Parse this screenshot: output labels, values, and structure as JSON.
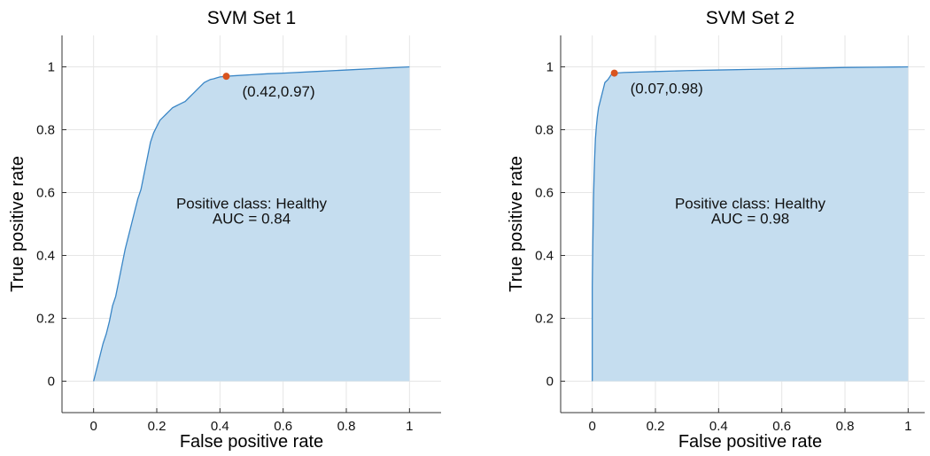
{
  "chart_data": [
    {
      "type": "area",
      "title": "SVM Set 1",
      "xlabel": "False positive rate",
      "ylabel": "True positive rate",
      "xlim": [
        -0.1,
        1.1
      ],
      "ylim": [
        -0.1,
        1.1
      ],
      "xticks": [
        "0",
        "0.2",
        "0.4",
        "0.6",
        "0.8",
        "1"
      ],
      "yticks": [
        "0",
        "0.2",
        "0.4",
        "0.6",
        "0.8",
        "1"
      ],
      "grid": true,
      "annotation_lines": [
        "Positive class: Healthy",
        "AUC = 0.84"
      ],
      "operating_point": {
        "x": 0.42,
        "y": 0.97,
        "label": "(0.42,0.97)"
      },
      "series": [
        {
          "x": [
            0,
            0.01,
            0.02,
            0.03,
            0.04,
            0.05,
            0.06,
            0.07,
            0.08,
            0.09,
            0.1,
            0.11,
            0.12,
            0.13,
            0.14,
            0.15,
            0.16,
            0.17,
            0.18,
            0.19,
            0.2,
            0.21,
            0.22,
            0.23,
            0.24,
            0.25,
            0.26,
            0.27,
            0.28,
            0.29,
            0.3,
            0.31,
            0.32,
            0.33,
            0.34,
            0.35,
            0.36,
            0.37,
            0.38,
            0.39,
            0.4,
            0.42,
            0.45,
            0.5,
            0.55,
            0.6,
            0.7,
            0.8,
            0.9,
            1.0
          ],
          "y": [
            0,
            0.04,
            0.08,
            0.12,
            0.15,
            0.19,
            0.24,
            0.27,
            0.32,
            0.37,
            0.42,
            0.46,
            0.5,
            0.54,
            0.58,
            0.61,
            0.66,
            0.71,
            0.76,
            0.79,
            0.81,
            0.83,
            0.84,
            0.85,
            0.86,
            0.87,
            0.875,
            0.88,
            0.885,
            0.89,
            0.9,
            0.91,
            0.92,
            0.93,
            0.94,
            0.95,
            0.955,
            0.96,
            0.962,
            0.965,
            0.968,
            0.97,
            0.972,
            0.975,
            0.978,
            0.98,
            0.985,
            0.99,
            0.995,
            1.0
          ]
        }
      ]
    },
    {
      "type": "area",
      "title": "SVM Set 2",
      "xlabel": "False positive rate",
      "ylabel": "True positive rate",
      "xlim": [
        -0.1,
        1.1
      ],
      "ylim": [
        -0.1,
        1.1
      ],
      "xticks": [
        "0",
        "0.2",
        "0.4",
        "0.6",
        "0.8",
        "1"
      ],
      "yticks": [
        "0",
        "0.2",
        "0.4",
        "0.6",
        "0.8",
        "1"
      ],
      "grid": true,
      "annotation_lines": [
        "Positive class: Healthy",
        "AUC = 0.98"
      ],
      "operating_point": {
        "x": 0.07,
        "y": 0.98,
        "label": "(0.07,0.98)"
      },
      "series": [
        {
          "x": [
            0,
            0,
            0.002,
            0.004,
            0.006,
            0.008,
            0.01,
            0.013,
            0.016,
            0.02,
            0.025,
            0.03,
            0.035,
            0.04,
            0.05,
            0.06,
            0.07,
            0.1,
            0.2,
            0.3,
            0.4,
            0.5,
            0.6,
            0.7,
            0.8,
            0.9,
            1.0
          ],
          "y": [
            0,
            0.3,
            0.45,
            0.58,
            0.66,
            0.72,
            0.77,
            0.81,
            0.84,
            0.87,
            0.89,
            0.91,
            0.93,
            0.95,
            0.96,
            0.975,
            0.98,
            0.982,
            0.985,
            0.988,
            0.99,
            0.992,
            0.994,
            0.996,
            0.998,
            0.999,
            1.0
          ]
        }
      ]
    }
  ]
}
